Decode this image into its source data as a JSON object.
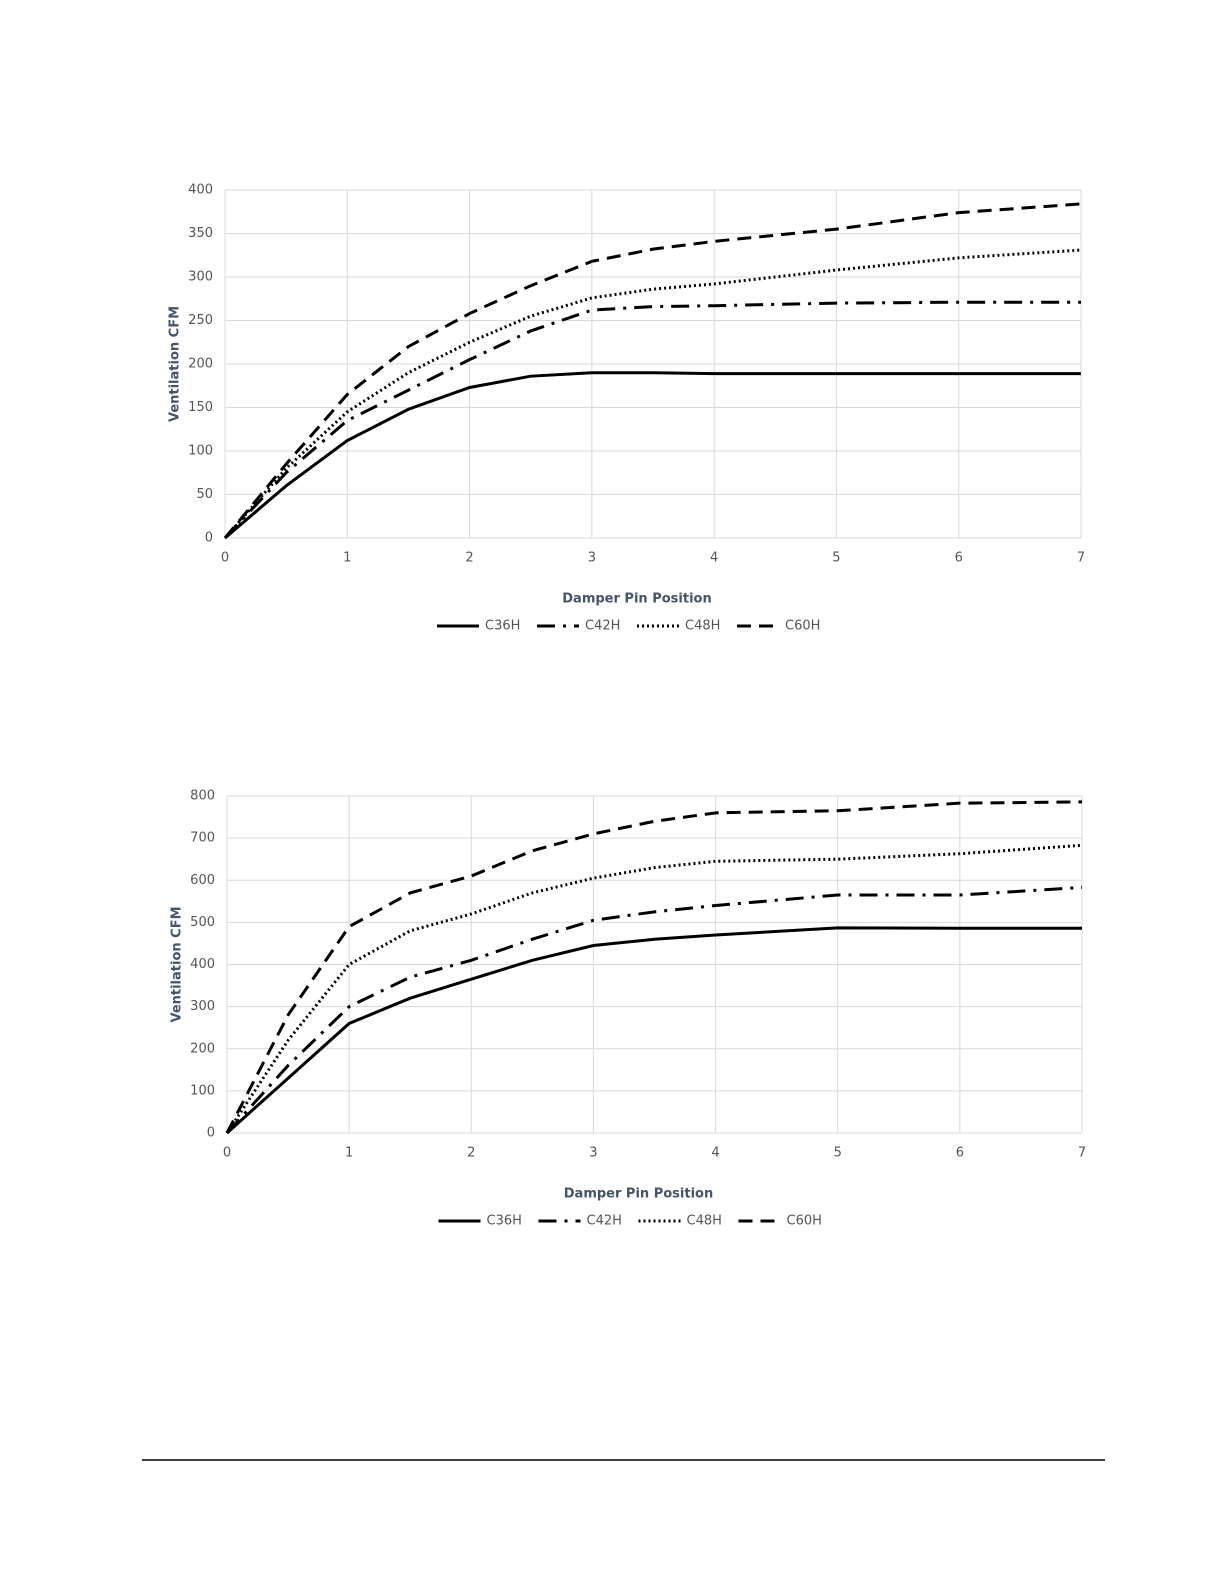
{
  "chart_data": [
    {
      "type": "line",
      "ylabel": "Ventilation CFM",
      "xlabel": "Damper Pin Position",
      "x": [
        0,
        0.5,
        1,
        1.5,
        2,
        2.5,
        3,
        3.5,
        4,
        5,
        6,
        7
      ],
      "xlim": [
        0,
        7
      ],
      "xticks": [
        0,
        1,
        2,
        3,
        4,
        5,
        6,
        7
      ],
      "ylim": [
        0,
        400
      ],
      "yticks": [
        0,
        50,
        100,
        150,
        200,
        250,
        300,
        350,
        400
      ],
      "grid": true,
      "legend": "bottom",
      "series": [
        {
          "name": "C36H",
          "color": "#000000",
          "dash": "solid",
          "values": [
            0,
            60,
            112,
            148,
            173,
            186,
            190,
            190,
            189,
            189,
            189,
            189
          ]
        },
        {
          "name": "C42H",
          "color": "#000000",
          "dash": "dashdot",
          "values": [
            0,
            75,
            135,
            170,
            205,
            238,
            262,
            266,
            267,
            270,
            271,
            271
          ]
        },
        {
          "name": "C48H",
          "color": "#000000",
          "dash": "dotted",
          "values": [
            0,
            80,
            145,
            190,
            225,
            255,
            276,
            286,
            292,
            308,
            322,
            331
          ]
        },
        {
          "name": "C60H",
          "color": "#000000",
          "dash": "dashed",
          "values": [
            0,
            85,
            165,
            220,
            258,
            290,
            318,
            332,
            341,
            355,
            374,
            384
          ]
        }
      ]
    },
    {
      "type": "line",
      "ylabel": "Ventilation CFM",
      "xlabel": "Damper Pin Position",
      "x": [
        0,
        0.5,
        1,
        1.5,
        2,
        2.5,
        3,
        3.5,
        4,
        5,
        6,
        7
      ],
      "xlim": [
        0,
        7
      ],
      "xticks": [
        0,
        1,
        2,
        3,
        4,
        5,
        6,
        7
      ],
      "ylim": [
        0,
        800
      ],
      "yticks": [
        0,
        100,
        200,
        300,
        400,
        500,
        600,
        700,
        800
      ],
      "grid": true,
      "legend": "bottom",
      "series": [
        {
          "name": "C36H",
          "color": "#000000",
          "dash": "solid",
          "values": [
            0,
            130,
            260,
            320,
            365,
            410,
            445,
            460,
            470,
            487,
            486,
            486
          ]
        },
        {
          "name": "C42H",
          "color": "#000000",
          "dash": "dashdot",
          "values": [
            0,
            160,
            300,
            370,
            410,
            460,
            505,
            525,
            540,
            565,
            565,
            583
          ]
        },
        {
          "name": "C48H",
          "color": "#000000",
          "dash": "dotted",
          "values": [
            0,
            220,
            400,
            480,
            520,
            570,
            605,
            630,
            645,
            650,
            663,
            683
          ]
        },
        {
          "name": "C60H",
          "color": "#000000",
          "dash": "dashed",
          "values": [
            0,
            280,
            490,
            570,
            610,
            670,
            710,
            740,
            760,
            765,
            783,
            786
          ]
        }
      ]
    }
  ]
}
